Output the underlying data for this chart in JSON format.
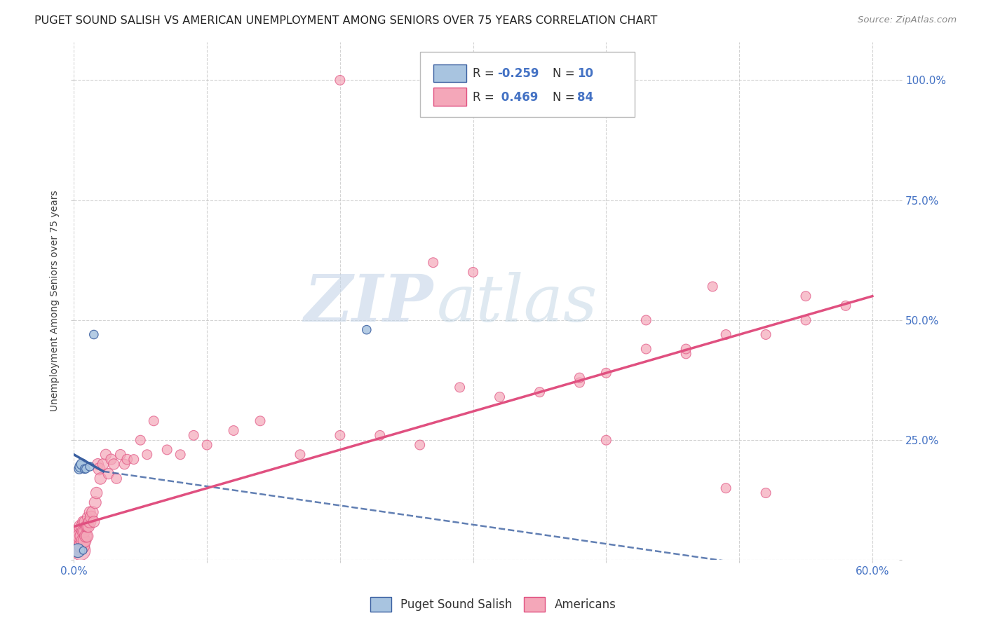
{
  "title": "PUGET SOUND SALISH VS AMERICAN UNEMPLOYMENT AMONG SENIORS OVER 75 YEARS CORRELATION CHART",
  "source": "Source: ZipAtlas.com",
  "ylabel": "Unemployment Among Seniors over 75 years",
  "xlim": [
    0.0,
    0.62
  ],
  "ylim": [
    0.0,
    1.08
  ],
  "x_ticks": [
    0.0,
    0.1,
    0.2,
    0.3,
    0.4,
    0.5,
    0.6
  ],
  "x_tick_labels": [
    "0.0%",
    "",
    "",
    "",
    "",
    "",
    "60.0%"
  ],
  "y_ticks": [
    0.0,
    0.25,
    0.5,
    0.75,
    1.0
  ],
  "y_tick_labels_right": [
    "",
    "25.0%",
    "50.0%",
    "75.0%",
    "100.0%"
  ],
  "blue_color": "#a8c4e0",
  "pink_color": "#f4a7b9",
  "blue_line_color": "#3a5fa0",
  "pink_line_color": "#e05080",
  "text_blue": "#4472c4",
  "background_color": "#ffffff",
  "watermark_zip": "ZIP",
  "watermark_atlas": "atlas",
  "blue_scatter_x": [
    0.003,
    0.004,
    0.005,
    0.006,
    0.007,
    0.008,
    0.009,
    0.012,
    0.015,
    0.22
  ],
  "blue_scatter_y": [
    0.02,
    0.19,
    0.195,
    0.2,
    0.02,
    0.19,
    0.19,
    0.195,
    0.47,
    0.48
  ],
  "blue_scatter_sizes": [
    200,
    100,
    130,
    120,
    60,
    80,
    70,
    80,
    80,
    80
  ],
  "pink_scatter_x": [
    0.001,
    0.002,
    0.002,
    0.003,
    0.003,
    0.004,
    0.004,
    0.004,
    0.005,
    0.005,
    0.005,
    0.005,
    0.006,
    0.006,
    0.006,
    0.007,
    0.007,
    0.007,
    0.008,
    0.008,
    0.008,
    0.009,
    0.009,
    0.01,
    0.01,
    0.01,
    0.011,
    0.012,
    0.012,
    0.013,
    0.014,
    0.015,
    0.016,
    0.017,
    0.018,
    0.019,
    0.02,
    0.022,
    0.024,
    0.026,
    0.028,
    0.03,
    0.032,
    0.035,
    0.038,
    0.04,
    0.045,
    0.05,
    0.055,
    0.06,
    0.07,
    0.08,
    0.09,
    0.1,
    0.12,
    0.14,
    0.17,
    0.2,
    0.23,
    0.26,
    0.29,
    0.32,
    0.35,
    0.38,
    0.4,
    0.43,
    0.46,
    0.49,
    0.52,
    0.55,
    0.58,
    0.4,
    0.43,
    0.46,
    0.49,
    0.52,
    0.55,
    0.48,
    0.38,
    0.3,
    0.27,
    0.2,
    0.38,
    0.41
  ],
  "pink_scatter_y": [
    0.02,
    0.03,
    0.04,
    0.04,
    0.05,
    0.03,
    0.05,
    0.06,
    0.02,
    0.04,
    0.05,
    0.07,
    0.03,
    0.05,
    0.07,
    0.04,
    0.06,
    0.08,
    0.04,
    0.06,
    0.08,
    0.05,
    0.07,
    0.05,
    0.07,
    0.09,
    0.07,
    0.08,
    0.1,
    0.09,
    0.1,
    0.08,
    0.12,
    0.14,
    0.2,
    0.19,
    0.17,
    0.2,
    0.22,
    0.18,
    0.21,
    0.2,
    0.17,
    0.22,
    0.2,
    0.21,
    0.21,
    0.25,
    0.22,
    0.29,
    0.23,
    0.22,
    0.26,
    0.24,
    0.27,
    0.29,
    0.22,
    0.26,
    0.26,
    0.24,
    0.36,
    0.34,
    0.35,
    0.37,
    0.39,
    0.44,
    0.43,
    0.47,
    0.47,
    0.5,
    0.53,
    0.25,
    0.5,
    0.44,
    0.15,
    0.14,
    0.55,
    0.57,
    0.38,
    0.6,
    0.62,
    1.0,
    1.0,
    1.0
  ],
  "pink_scatter_sizes": [
    200,
    180,
    150,
    130,
    120,
    350,
    280,
    200,
    400,
    320,
    250,
    180,
    250,
    200,
    150,
    200,
    160,
    130,
    180,
    150,
    120,
    160,
    130,
    150,
    130,
    100,
    140,
    160,
    130,
    150,
    140,
    130,
    150,
    140,
    130,
    150,
    140,
    130,
    120,
    120,
    120,
    120,
    110,
    110,
    110,
    110,
    100,
    100,
    100,
    100,
    100,
    100,
    100,
    100,
    100,
    100,
    100,
    100,
    100,
    100,
    100,
    100,
    100,
    100,
    100,
    100,
    100,
    100,
    100,
    100,
    100,
    100,
    100,
    100,
    100,
    100,
    100,
    100,
    100,
    100,
    100,
    100,
    100,
    100
  ]
}
